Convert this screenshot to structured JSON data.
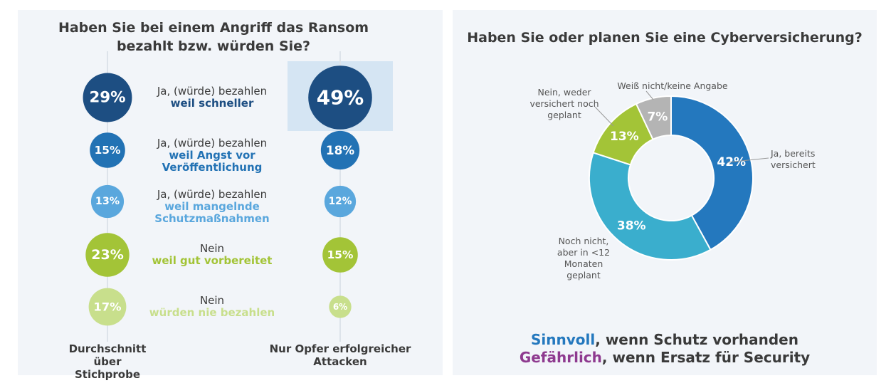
{
  "chart_data": [
    {
      "type": "bubble",
      "title": "Haben Sie bei einem Angriff das Ransom bezahlt bzw. würden Sie?",
      "categories": [
        [
          "Ja, (würde) bezahlen",
          "weil schneller"
        ],
        [
          "Ja, (würde) bezahlen",
          "weil Angst vor",
          "Veröffentlichung"
        ],
        [
          "Ja, (würde) bezahlen",
          "weil mangelnde",
          "Schutzmaßnahmen"
        ],
        [
          "Nein",
          "weil gut vorbereitet"
        ],
        [
          "Nein",
          "würden nie bezahlen"
        ]
      ],
      "colors": [
        "#1d4e82",
        "#2272b4",
        "#5aa7dd",
        "#a3c437",
        "#c8df8c"
      ],
      "series": [
        {
          "name": "Durchschnitt über Stichprobe",
          "values": [
            29,
            15,
            13,
            23,
            17
          ],
          "value_labels": [
            "29%",
            "15%",
            "13%",
            "23%",
            "17%"
          ]
        },
        {
          "name": "Nur Opfer erfolgreicher Attacken",
          "values": [
            49,
            18,
            12,
            15,
            6
          ],
          "value_labels": [
            "49%",
            "18%",
            "12%",
            "15%",
            "6%"
          ]
        }
      ]
    },
    {
      "type": "donut",
      "title": "Haben Sie oder planen Sie eine Cyberversicherung?",
      "categories": [
        [
          "Ja, bereits",
          "versichert"
        ],
        [
          "Noch nicht,",
          "aber in <12",
          "Monaten",
          "geplant"
        ],
        [
          "Nein, weder",
          "versichert noch",
          "geplant"
        ],
        [
          "Weiß nicht/keine Angabe"
        ]
      ],
      "values": [
        42,
        38,
        13,
        7
      ],
      "value_labels": [
        "42%",
        "38%",
        "13%",
        "7%"
      ],
      "colors": [
        "#2478be",
        "#3aaecd",
        "#a3c437",
        "#b4b4b4"
      ],
      "notes": [
        [
          "Sinnvoll",
          ", wenn Schutz vorhanden"
        ],
        [
          "Gefährlich",
          ", wenn Ersatz für Security"
        ]
      ]
    }
  ]
}
